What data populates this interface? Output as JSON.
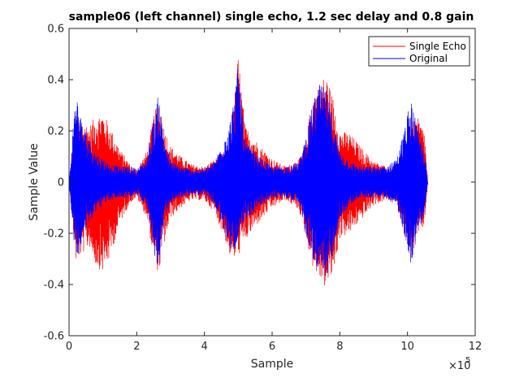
{
  "chart_data": {
    "type": "line",
    "title": "sample06 (left channel) single echo, 1.2 sec delay and 0.8 gain",
    "xlabel": "Sample",
    "ylabel": "Sample Value",
    "xlim": [
      0,
      1200000
    ],
    "ylim": [
      -0.6,
      0.6
    ],
    "x_exponent_label": "×10",
    "x_exponent_power": "5",
    "xticks": [
      {
        "value": 0,
        "label": "0"
      },
      {
        "value": 200000,
        "label": "2"
      },
      {
        "value": 400000,
        "label": "4"
      },
      {
        "value": 600000,
        "label": "6"
      },
      {
        "value": 800000,
        "label": "8"
      },
      {
        "value": 1000000,
        "label": "10"
      },
      {
        "value": 1200000,
        "label": "12"
      }
    ],
    "yticks": [
      {
        "value": -0.6,
        "label": "-0.6"
      },
      {
        "value": -0.4,
        "label": "-0.4"
      },
      {
        "value": -0.2,
        "label": "-0.2"
      },
      {
        "value": 0,
        "label": "0"
      },
      {
        "value": 0.2,
        "label": "0.2"
      },
      {
        "value": 0.4,
        "label": "0.4"
      },
      {
        "value": 0.6,
        "label": "0.6"
      }
    ],
    "grid": false,
    "legend_position": "top-right",
    "series": [
      {
        "name": "Single Echo",
        "color": "#ff0000",
        "envelope": {
          "x": [
            0,
            20000,
            40000,
            60000,
            80000,
            100000,
            120000,
            150000,
            180000,
            200000,
            230000,
            250000,
            265000,
            280000,
            300000,
            330000,
            360000,
            400000,
            430000,
            460000,
            480000,
            500000,
            520000,
            560000,
            600000,
            640000,
            680000,
            700000,
            720000,
            740000,
            760000,
            780000,
            800000,
            830000,
            860000,
            900000,
            940000,
            970000,
            990000,
            1010000,
            1030000,
            1050000,
            1060000
          ],
          "upper": [
            0.0,
            0.26,
            0.24,
            0.22,
            0.26,
            0.27,
            0.22,
            0.13,
            0.07,
            0.05,
            0.12,
            0.26,
            0.32,
            0.22,
            0.14,
            0.1,
            0.07,
            0.06,
            0.09,
            0.12,
            0.19,
            0.5,
            0.22,
            0.15,
            0.09,
            0.06,
            0.09,
            0.15,
            0.35,
            0.39,
            0.42,
            0.33,
            0.2,
            0.19,
            0.14,
            0.08,
            0.06,
            0.07,
            0.12,
            0.23,
            0.25,
            0.2,
            0.0
          ],
          "lower": [
            0.0,
            -0.31,
            -0.28,
            -0.25,
            -0.33,
            -0.35,
            -0.3,
            -0.16,
            -0.08,
            -0.06,
            -0.14,
            -0.3,
            -0.36,
            -0.25,
            -0.14,
            -0.1,
            -0.07,
            -0.07,
            -0.12,
            -0.22,
            -0.31,
            -0.29,
            -0.23,
            -0.16,
            -0.1,
            -0.07,
            -0.11,
            -0.22,
            -0.33,
            -0.38,
            -0.42,
            -0.36,
            -0.22,
            -0.2,
            -0.15,
            -0.09,
            -0.07,
            -0.09,
            -0.2,
            -0.31,
            -0.22,
            -0.17,
            0.0
          ]
        }
      },
      {
        "name": "Original",
        "color": "#0000ff",
        "envelope": {
          "x": [
            0,
            20000,
            40000,
            60000,
            80000,
            100000,
            120000,
            150000,
            180000,
            200000,
            230000,
            250000,
            265000,
            280000,
            300000,
            330000,
            360000,
            400000,
            430000,
            460000,
            480000,
            500000,
            520000,
            560000,
            600000,
            640000,
            680000,
            700000,
            720000,
            740000,
            760000,
            780000,
            800000,
            830000,
            860000,
            900000,
            940000,
            970000,
            990000,
            1010000,
            1030000,
            1050000,
            1060000
          ],
          "upper": [
            0.0,
            0.36,
            0.22,
            0.17,
            0.11,
            0.09,
            0.07,
            0.06,
            0.06,
            0.05,
            0.09,
            0.25,
            0.35,
            0.18,
            0.08,
            0.06,
            0.05,
            0.05,
            0.08,
            0.18,
            0.26,
            0.46,
            0.16,
            0.1,
            0.06,
            0.06,
            0.08,
            0.18,
            0.31,
            0.38,
            0.36,
            0.24,
            0.12,
            0.08,
            0.06,
            0.06,
            0.06,
            0.1,
            0.2,
            0.33,
            0.2,
            0.12,
            0.0
          ],
          "lower": [
            0.0,
            -0.32,
            -0.22,
            -0.16,
            -0.11,
            -0.09,
            -0.07,
            -0.06,
            -0.06,
            -0.05,
            -0.09,
            -0.27,
            -0.36,
            -0.17,
            -0.08,
            -0.06,
            -0.05,
            -0.05,
            -0.09,
            -0.2,
            -0.27,
            -0.25,
            -0.16,
            -0.1,
            -0.06,
            -0.06,
            -0.08,
            -0.2,
            -0.3,
            -0.38,
            -0.39,
            -0.26,
            -0.14,
            -0.09,
            -0.06,
            -0.06,
            -0.06,
            -0.1,
            -0.2,
            -0.32,
            -0.2,
            -0.12,
            0.0
          ]
        }
      }
    ]
  }
}
